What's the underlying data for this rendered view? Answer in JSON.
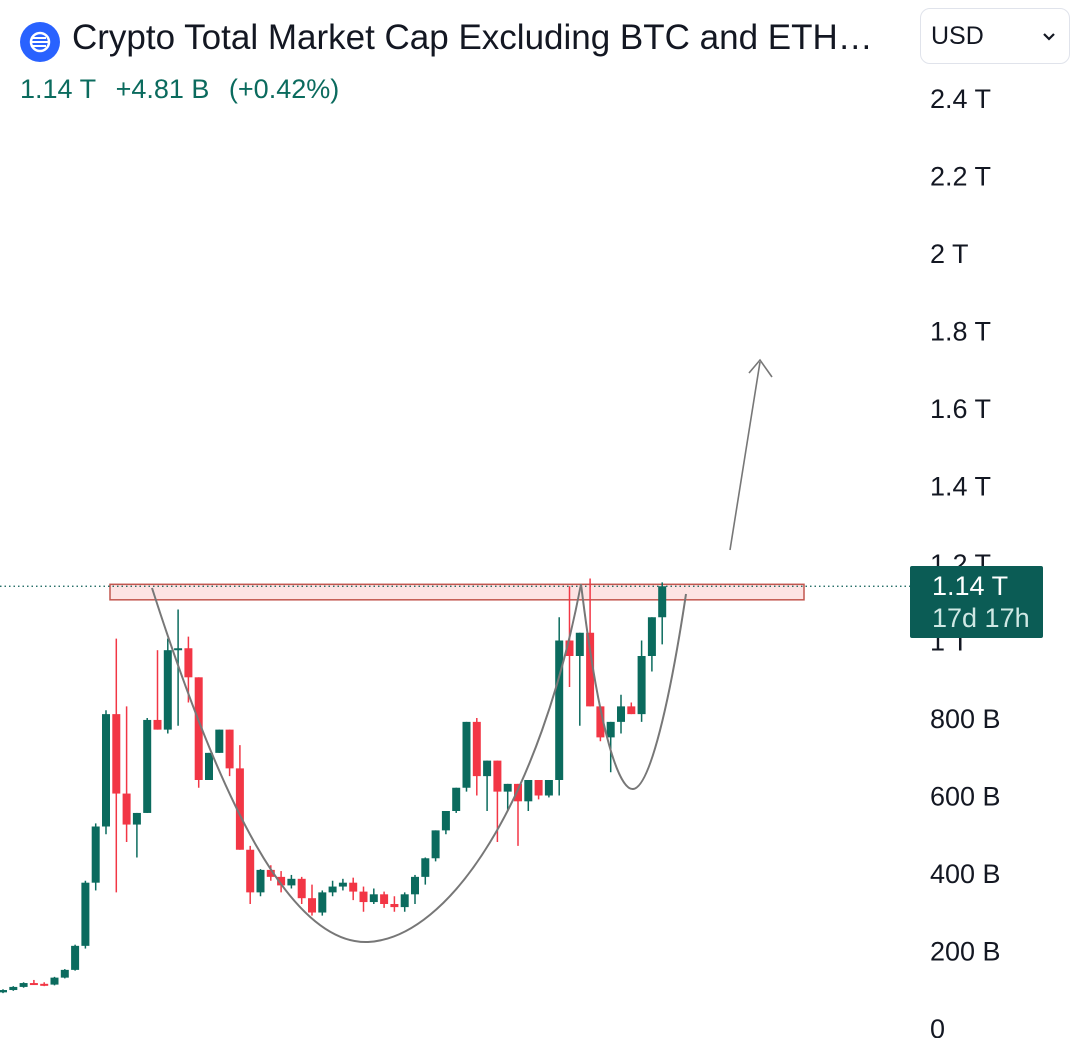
{
  "header": {
    "title": "Crypto Total Market Cap Excluding BTC and ETH…",
    "price": "1.14 T",
    "change": "+4.81 B",
    "change_pct": "(+0.42%)",
    "logo_icon": "crypto-logo-icon"
  },
  "currency_select": {
    "value": "USD",
    "icon": "chevron-down-icon"
  },
  "price_badge": {
    "price": "1.14 T",
    "countdown": "17d 17h"
  },
  "colors": {
    "up": "#0b6b5e",
    "down": "#f23645",
    "badge": "#0b5c55",
    "resistance_fill": "#fde3e3",
    "resistance_stroke": "#c2574f",
    "drawing": "#777777"
  },
  "chart_data": {
    "type": "candlestick",
    "y_unit": "USD",
    "ylim": [
      0,
      2500000000000
    ],
    "y_ticks": [
      {
        "value": 0,
        "label": "0"
      },
      {
        "value": 200000000000,
        "label": "200 B"
      },
      {
        "value": 400000000000,
        "label": "400 B"
      },
      {
        "value": 600000000000,
        "label": "600 B"
      },
      {
        "value": 800000000000,
        "label": "800 B"
      },
      {
        "value": 1000000000000,
        "label": "1 T"
      },
      {
        "value": 1200000000000,
        "label": "1.2 T"
      },
      {
        "value": 1400000000000,
        "label": "1.4 T"
      },
      {
        "value": 1600000000000,
        "label": "1.6 T"
      },
      {
        "value": 1800000000000,
        "label": "1.8 T"
      },
      {
        "value": 2000000000000,
        "label": "2 T"
      },
      {
        "value": 2200000000000,
        "label": "2.2 T"
      },
      {
        "value": 2400000000000,
        "label": "2.4 T"
      }
    ],
    "last_price": 1140000000000,
    "candles_ohlc_billions": [
      [
        92,
        100,
        90,
        98
      ],
      [
        98,
        108,
        96,
        106
      ],
      [
        106,
        118,
        104,
        116
      ],
      [
        116,
        124,
        112,
        114
      ],
      [
        114,
        118,
        108,
        112
      ],
      [
        112,
        132,
        110,
        130
      ],
      [
        130,
        152,
        128,
        150
      ],
      [
        150,
        215,
        148,
        212
      ],
      [
        212,
        380,
        205,
        375
      ],
      [
        375,
        528,
        355,
        520
      ],
      [
        520,
        820,
        500,
        810
      ],
      [
        810,
        1005,
        350,
        605
      ],
      [
        605,
        830,
        480,
        525
      ],
      [
        525,
        552,
        440,
        555
      ],
      [
        555,
        800,
        560,
        795
      ],
      [
        795,
        975,
        780,
        770
      ],
      [
        770,
        1005,
        760,
        975
      ],
      [
        975,
        1080,
        780,
        980
      ],
      [
        980,
        1010,
        840,
        905
      ],
      [
        905,
        790,
        620,
        640
      ],
      [
        640,
        700,
        680,
        710
      ],
      [
        710,
        740,
        720,
        770
      ],
      [
        770,
        690,
        650,
        670
      ],
      [
        670,
        730,
        560,
        460
      ],
      [
        460,
        470,
        320,
        350
      ],
      [
        350,
        410,
        340,
        408
      ],
      [
        408,
        420,
        380,
        390
      ],
      [
        390,
        405,
        350,
        368
      ],
      [
        368,
        395,
        360,
        385
      ],
      [
        385,
        390,
        320,
        335
      ],
      [
        335,
        370,
        290,
        298
      ],
      [
        298,
        355,
        290,
        350
      ],
      [
        350,
        380,
        340,
        365
      ],
      [
        365,
        385,
        355,
        375
      ],
      [
        375,
        388,
        330,
        352
      ],
      [
        352,
        365,
        300,
        325
      ],
      [
        325,
        360,
        320,
        345
      ],
      [
        345,
        352,
        310,
        320
      ],
      [
        320,
        340,
        300,
        312
      ],
      [
        312,
        350,
        300,
        345
      ],
      [
        345,
        395,
        320,
        390
      ],
      [
        390,
        440,
        370,
        438
      ],
      [
        438,
        505,
        430,
        510
      ],
      [
        510,
        560,
        500,
        560
      ],
      [
        560,
        615,
        555,
        620
      ],
      [
        620,
        790,
        610,
        790
      ],
      [
        790,
        800,
        600,
        650
      ],
      [
        650,
        690,
        560,
        690
      ],
      [
        690,
        670,
        480,
        610
      ],
      [
        610,
        620,
        560,
        630
      ],
      [
        630,
        560,
        470,
        585
      ],
      [
        585,
        635,
        560,
        640
      ],
      [
        640,
        625,
        590,
        600
      ],
      [
        600,
        640,
        595,
        640
      ],
      [
        640,
        1060,
        600,
        1000
      ],
      [
        1000,
        1140,
        880,
        960
      ],
      [
        960,
        1010,
        780,
        1020
      ],
      [
        1020,
        1160,
        950,
        830
      ],
      [
        830,
        800,
        740,
        750
      ],
      [
        750,
        790,
        660,
        790
      ],
      [
        790,
        860,
        760,
        830
      ],
      [
        830,
        840,
        810,
        810
      ],
      [
        810,
        1000,
        790,
        960
      ],
      [
        960,
        1060,
        920,
        1060
      ],
      [
        1060,
        1150,
        990,
        1140
      ]
    ]
  },
  "drawings": {
    "resistance_zone": {
      "top": 1145,
      "bottom": 1105,
      "from_index": 11,
      "to_index": 78
    },
    "cup_curve": "cup-and-handle-curve",
    "target_arrow": "target-arrow-icon"
  }
}
